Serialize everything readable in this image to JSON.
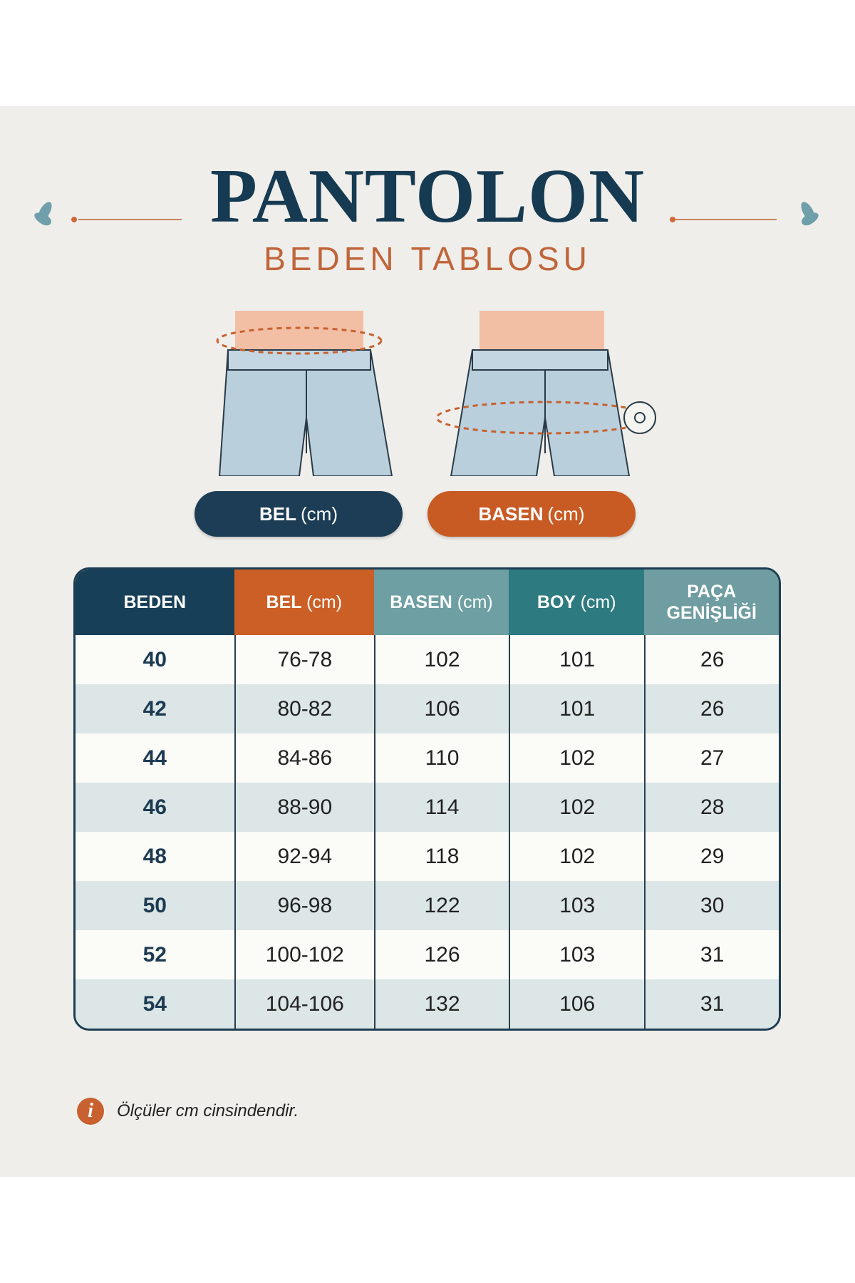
{
  "header": {
    "title": "PANTOLON",
    "subtitle": "BEDEN TABLOSU"
  },
  "figures": [
    {
      "label": "BEL",
      "unit": "(cm)",
      "color": "#1c3d55"
    },
    {
      "label": "BASEN",
      "unit": "(cm)",
      "color": "#c85a23"
    }
  ],
  "table": {
    "columns": [
      {
        "label": "BEDEN",
        "unit": "",
        "color": "#173f58"
      },
      {
        "label": "BEL",
        "unit": "(cm)",
        "color": "#cc5f26"
      },
      {
        "label": "BASEN",
        "unit": "(cm)",
        "color": "#6e9fa3"
      },
      {
        "label": "BOY",
        "unit": "(cm)",
        "color": "#2d7b80"
      },
      {
        "label": "PAÇA GENİŞLİĞİ",
        "unit": "",
        "color": "#6f9da1"
      }
    ],
    "rows": [
      [
        "40",
        "76-78",
        "102",
        "101",
        "26"
      ],
      [
        "42",
        "80-82",
        "106",
        "101",
        "26"
      ],
      [
        "44",
        "84-86",
        "110",
        "102",
        "27"
      ],
      [
        "46",
        "88-90",
        "114",
        "102",
        "28"
      ],
      [
        "48",
        "92-94",
        "118",
        "102",
        "29"
      ],
      [
        "50",
        "96-98",
        "122",
        "103",
        "30"
      ],
      [
        "52",
        "100-102",
        "126",
        "103",
        "31"
      ],
      [
        "54",
        "104-106",
        "132",
        "106",
        "31"
      ]
    ]
  },
  "note": {
    "icon": "info-icon",
    "text": "Ölçüler cm cinsindendir."
  }
}
